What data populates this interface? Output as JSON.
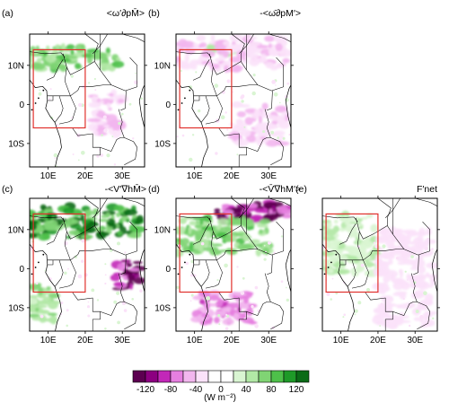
{
  "chart_data": [
    {
      "type": "heatmap",
      "panel": "(a)",
      "title": "<ω′∂pM̄>",
      "xlabel": "",
      "ylabel": "",
      "x_ticks": [
        "10E",
        "20E",
        "30E"
      ],
      "y_ticks": [
        "10N",
        "0",
        "10S"
      ],
      "box_lon": [
        6,
        20
      ],
      "box_lat": [
        -6,
        14
      ],
      "features": [
        {
          "kind": "positive",
          "level": 80,
          "lon": [
            5,
            30
          ],
          "lat": [
            9,
            15
          ],
          "note": "strong green band"
        },
        {
          "kind": "negative",
          "level": -40,
          "lon": [
            22,
            30
          ],
          "lat": [
            -9,
            3
          ],
          "note": "pink patches"
        }
      ]
    },
    {
      "type": "heatmap",
      "panel": "(b)",
      "title": "-<ω̄∂pM′>",
      "xlabel": "",
      "ylabel": "",
      "x_ticks": [
        "10E",
        "20E",
        "30E"
      ],
      "y_ticks": [
        "10N",
        "0",
        "10S"
      ],
      "box_lon": [
        6,
        20
      ],
      "box_lat": [
        -6,
        14
      ],
      "features": [
        {
          "kind": "positive",
          "level": 60,
          "lon": [
            14,
            22
          ],
          "lat": [
            13,
            15
          ],
          "note": "green streak"
        },
        {
          "kind": "negative",
          "level": -40,
          "lon": [
            5,
            35
          ],
          "lat": [
            9,
            17
          ],
          "note": "pink band north"
        },
        {
          "kind": "negative",
          "level": -40,
          "lon": [
            20,
            35
          ],
          "lat": [
            -10,
            0
          ],
          "note": "scattered pink"
        }
      ]
    },
    {
      "type": "heatmap",
      "panel": "(c)",
      "title": "-<V′∇hM̄>",
      "xlabel": "",
      "ylabel": "",
      "x_ticks": [
        "10E",
        "20E",
        "30E"
      ],
      "y_ticks": [
        "10N",
        "0",
        "10S"
      ],
      "box_lon": [
        6,
        20
      ],
      "box_lat": [
        -6,
        14
      ],
      "features": [
        {
          "kind": "positive",
          "level": 120,
          "lon": [
            5,
            35
          ],
          "lat": [
            8,
            16
          ],
          "note": "strong green band"
        },
        {
          "kind": "negative",
          "level": -120,
          "lon": [
            28,
            35
          ],
          "lat": [
            -6,
            2
          ],
          "note": "deep purple east"
        },
        {
          "kind": "positive",
          "level": 60,
          "lon": [
            5,
            12
          ],
          "lat": [
            -14,
            -4
          ],
          "note": "green along coast"
        }
      ]
    },
    {
      "type": "heatmap",
      "panel": "(d)",
      "title": "-<V̄∇hM′>",
      "xlabel": "",
      "ylabel": "",
      "x_ticks": [
        "10E",
        "20E",
        "30E"
      ],
      "y_ticks": [
        "10N",
        "0",
        "10S"
      ],
      "box_lon": [
        6,
        20
      ],
      "box_lat": [
        -6,
        14
      ],
      "features": [
        {
          "kind": "negative",
          "level": -120,
          "lon": [
            14,
            35
          ],
          "lat": [
            12,
            17
          ],
          "note": "purple band north"
        },
        {
          "kind": "positive",
          "level": 80,
          "lon": [
            5,
            30
          ],
          "lat": [
            4,
            13
          ],
          "note": "green west"
        },
        {
          "kind": "negative",
          "level": -80,
          "lon": [
            10,
            26
          ],
          "lat": [
            -14,
            -6
          ],
          "note": "magenta south"
        }
      ]
    },
    {
      "type": "heatmap",
      "panel": "(e)",
      "title": "F′net",
      "xlabel": "",
      "ylabel": "",
      "x_ticks": [
        "10E",
        "20E",
        "30E"
      ],
      "y_ticks": [],
      "box_lon": [
        6,
        20
      ],
      "box_lat": [
        -6,
        14
      ],
      "features": [
        {
          "kind": "positive",
          "level": 40,
          "lon": [
            5,
            20
          ],
          "lat": [
            -2,
            14
          ],
          "note": "light green"
        },
        {
          "kind": "negative",
          "level": -20,
          "lon": [
            20,
            35
          ],
          "lat": [
            -15,
            10
          ],
          "note": "faint pink"
        }
      ]
    }
  ],
  "colorbar": {
    "ticks": [
      "-120",
      "-80",
      "-40",
      "0",
      "40",
      "80",
      "120"
    ],
    "colors": [
      "#5c0050",
      "#8c0080",
      "#c228b8",
      "#e67fe0",
      "#f2b6ee",
      "#fbe2f9",
      "#ffffff",
      "#ffffff",
      "#d9f5d2",
      "#b2e8a6",
      "#80d474",
      "#4ec04a",
      "#1e9a28",
      "#0b6b17"
    ],
    "unit": "(W m⁻²)"
  },
  "colors": {
    "positive_scale": [
      "#d9f5d2",
      "#b2e8a6",
      "#80d474",
      "#4ec04a",
      "#1e9a28",
      "#0b6b17"
    ],
    "negative_scale": [
      "#fbe2f9",
      "#f2b6ee",
      "#e67fe0",
      "#c228b8",
      "#8c0080",
      "#5c0050"
    ],
    "box": "#e0302c"
  }
}
